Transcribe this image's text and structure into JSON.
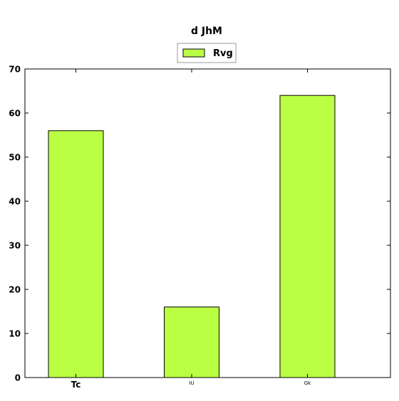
{
  "chart_data": {
    "type": "bar",
    "title": "d JhM",
    "categories": [
      "Tc",
      "IU",
      "Gk"
    ],
    "series": [
      {
        "name": "Rvg",
        "values": [
          56,
          16,
          64
        ],
        "color": "#bbff44"
      }
    ],
    "xlabel": "",
    "ylabel": "",
    "ylim": [
      0,
      70
    ],
    "yticks": [
      0,
      10,
      20,
      30,
      40,
      50,
      60,
      70
    ],
    "grid": false,
    "legend_position": "top-center",
    "colors": {
      "bar_fill": "#bbff44",
      "bar_edge": "#000000",
      "axes": "#000000",
      "background": "#ffffff"
    }
  }
}
